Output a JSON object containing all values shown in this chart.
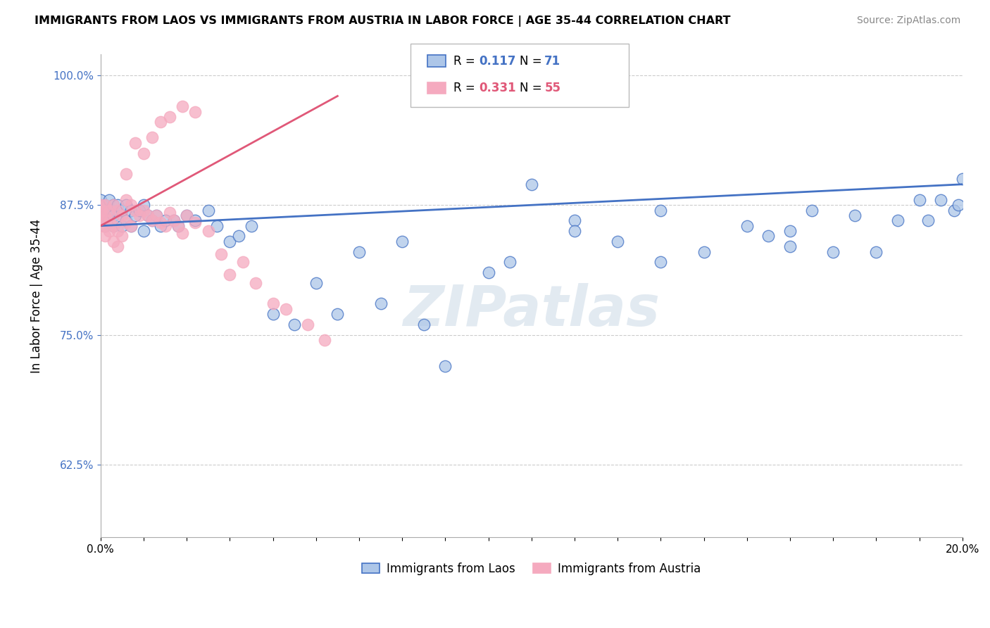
{
  "title": "IMMIGRANTS FROM LAOS VS IMMIGRANTS FROM AUSTRIA IN LABOR FORCE | AGE 35-44 CORRELATION CHART",
  "source": "Source: ZipAtlas.com",
  "ylabel": "In Labor Force | Age 35-44",
  "legend_label_laos": "Immigrants from Laos",
  "legend_label_austria": "Immigrants from Austria",
  "R_laos": 0.117,
  "N_laos": 71,
  "R_austria": 0.331,
  "N_austria": 55,
  "color_laos": "#adc6e8",
  "color_austria": "#f5aabf",
  "line_color_laos": "#4472c4",
  "line_color_austria": "#e05878",
  "xlim": [
    0.0,
    0.2
  ],
  "ylim": [
    0.555,
    1.02
  ],
  "ytick_values": [
    0.625,
    0.75,
    0.875,
    1.0
  ],
  "ytick_labels": [
    "62.5%",
    "75.0%",
    "87.5%",
    "100.0%"
  ],
  "laos_x": [
    0.0,
    0.0,
    0.0,
    0.001,
    0.001,
    0.001,
    0.002,
    0.002,
    0.002,
    0.003,
    0.003,
    0.003,
    0.004,
    0.004,
    0.005,
    0.005,
    0.006,
    0.006,
    0.007,
    0.007,
    0.008,
    0.009,
    0.01,
    0.01,
    0.011,
    0.012,
    0.013,
    0.014,
    0.015,
    0.017,
    0.018,
    0.02,
    0.022,
    0.025,
    0.027,
    0.03,
    0.032,
    0.035,
    0.04,
    0.045,
    0.05,
    0.055,
    0.06,
    0.065,
    0.07,
    0.075,
    0.08,
    0.09,
    0.095,
    0.1,
    0.11,
    0.12,
    0.13,
    0.14,
    0.15,
    0.155,
    0.16,
    0.165,
    0.17,
    0.175,
    0.18,
    0.185,
    0.19,
    0.192,
    0.195,
    0.198,
    0.199,
    0.2,
    0.11,
    0.13,
    0.16
  ],
  "laos_y": [
    0.875,
    0.88,
    0.86,
    0.875,
    0.865,
    0.855,
    0.88,
    0.87,
    0.86,
    0.875,
    0.865,
    0.855,
    0.875,
    0.86,
    0.87,
    0.855,
    0.875,
    0.86,
    0.87,
    0.855,
    0.865,
    0.87,
    0.875,
    0.85,
    0.865,
    0.86,
    0.865,
    0.855,
    0.86,
    0.86,
    0.855,
    0.865,
    0.86,
    0.87,
    0.855,
    0.84,
    0.845,
    0.855,
    0.77,
    0.76,
    0.8,
    0.77,
    0.83,
    0.78,
    0.84,
    0.76,
    0.72,
    0.81,
    0.82,
    0.895,
    0.86,
    0.84,
    0.82,
    0.83,
    0.855,
    0.845,
    0.835,
    0.87,
    0.83,
    0.865,
    0.83,
    0.86,
    0.88,
    0.86,
    0.88,
    0.87,
    0.875,
    0.9,
    0.85,
    0.87,
    0.85
  ],
  "austria_x": [
    0.0,
    0.0,
    0.0,
    0.0,
    0.0,
    0.001,
    0.001,
    0.001,
    0.001,
    0.002,
    0.002,
    0.002,
    0.003,
    0.003,
    0.004,
    0.004,
    0.005,
    0.005,
    0.006,
    0.006,
    0.007,
    0.007,
    0.008,
    0.009,
    0.01,
    0.011,
    0.012,
    0.013,
    0.014,
    0.015,
    0.016,
    0.017,
    0.018,
    0.019,
    0.02,
    0.022,
    0.025,
    0.028,
    0.03,
    0.033,
    0.036,
    0.04,
    0.043,
    0.048,
    0.052,
    0.003,
    0.004,
    0.006,
    0.008,
    0.01,
    0.012,
    0.014,
    0.016,
    0.019,
    0.022
  ],
  "austria_y": [
    0.87,
    0.875,
    0.865,
    0.86,
    0.855,
    0.875,
    0.865,
    0.855,
    0.845,
    0.87,
    0.86,
    0.85,
    0.875,
    0.855,
    0.87,
    0.85,
    0.865,
    0.845,
    0.88,
    0.858,
    0.875,
    0.855,
    0.87,
    0.865,
    0.87,
    0.865,
    0.86,
    0.865,
    0.858,
    0.855,
    0.868,
    0.86,
    0.855,
    0.848,
    0.865,
    0.858,
    0.85,
    0.828,
    0.808,
    0.82,
    0.8,
    0.78,
    0.775,
    0.76,
    0.745,
    0.84,
    0.835,
    0.905,
    0.935,
    0.925,
    0.94,
    0.955,
    0.96,
    0.97,
    0.965
  ],
  "trendline_laos": [
    0.0,
    0.2,
    0.855,
    0.895
  ],
  "trendline_austria": [
    0.0,
    0.055,
    0.855,
    0.98
  ]
}
